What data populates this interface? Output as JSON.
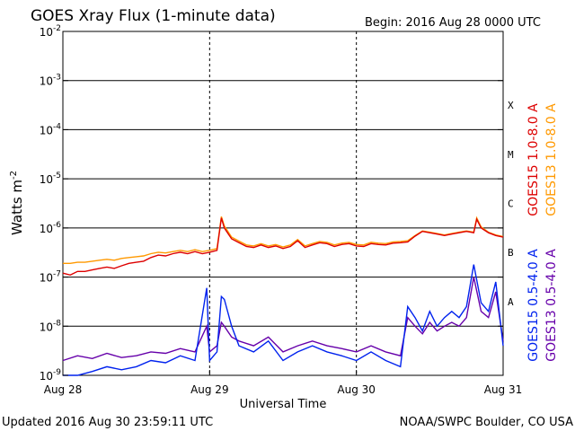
{
  "chart_data": {
    "type": "line",
    "title": "GOES Xray Flux (1-minute data)",
    "begin_label": "Begin:  2016 Aug 28 0000 UTC",
    "xlabel": "Universal Time",
    "ylabel": "Watts m",
    "ylabel_exp": "-2",
    "y_scale": "log",
    "ylim": [
      1e-09,
      0.01
    ],
    "y_ticks": [
      {
        "base": "10",
        "exp": "-9",
        "value": 1e-09
      },
      {
        "base": "10",
        "exp": "-8",
        "value": 1e-08
      },
      {
        "base": "10",
        "exp": "-7",
        "value": 1e-07
      },
      {
        "base": "10",
        "exp": "-6",
        "value": 1e-06
      },
      {
        "base": "10",
        "exp": "-5",
        "value": 1e-05
      },
      {
        "base": "10",
        "exp": "-4",
        "value": 0.0001
      },
      {
        "base": "10",
        "exp": "-3",
        "value": 0.001
      },
      {
        "base": "10",
        "exp": "-2",
        "value": 0.01
      }
    ],
    "x_ticks": [
      "Aug 28",
      "Aug 29",
      "Aug 30",
      "Aug 31"
    ],
    "xlim_days": [
      0,
      3
    ],
    "flare_classes": [
      "A",
      "B",
      "C",
      "M",
      "X"
    ],
    "grid": true,
    "legend_placement": "right-vertical",
    "series": [
      {
        "name": "GOES15 1.0-8.0 A",
        "color": "#dd0000",
        "x_days": [
          0.0,
          0.05,
          0.1,
          0.15,
          0.2,
          0.25,
          0.3,
          0.35,
          0.4,
          0.45,
          0.5,
          0.55,
          0.6,
          0.65,
          0.7,
          0.75,
          0.8,
          0.85,
          0.9,
          0.95,
          1.0,
          1.05,
          1.08,
          1.1,
          1.15,
          1.2,
          1.25,
          1.3,
          1.35,
          1.4,
          1.45,
          1.5,
          1.55,
          1.6,
          1.65,
          1.7,
          1.75,
          1.8,
          1.85,
          1.9,
          1.95,
          2.0,
          2.05,
          2.1,
          2.15,
          2.2,
          2.25,
          2.3,
          2.35,
          2.4,
          2.45,
          2.5,
          2.55,
          2.6,
          2.65,
          2.7,
          2.75,
          2.8,
          2.82,
          2.85,
          2.9,
          2.95,
          3.0
        ],
        "values": [
          1.2e-07,
          1.1e-07,
          1.3e-07,
          1.3e-07,
          1.4e-07,
          1.5e-07,
          1.6e-07,
          1.5e-07,
          1.7e-07,
          1.9e-07,
          2e-07,
          2.1e-07,
          2.5e-07,
          2.8e-07,
          2.7e-07,
          3e-07,
          3.2e-07,
          3e-07,
          3.3e-07,
          3e-07,
          3.2e-07,
          3.5e-07,
          1.6e-06,
          1e-06,
          6e-07,
          5e-07,
          4.2e-07,
          4e-07,
          4.5e-07,
          4e-07,
          4.3e-07,
          3.8e-07,
          4.2e-07,
          5.5e-07,
          4e-07,
          4.5e-07,
          5e-07,
          4.8e-07,
          4.2e-07,
          4.6e-07,
          4.8e-07,
          4.3e-07,
          4.2e-07,
          4.8e-07,
          4.6e-07,
          4.5e-07,
          4.9e-07,
          5e-07,
          5.2e-07,
          6.8e-07,
          8.5e-07,
          8e-07,
          7.5e-07,
          7e-07,
          7.5e-07,
          8e-07,
          8.5e-07,
          8e-07,
          1.5e-06,
          1e-06,
          8e-07,
          7e-07,
          6.5e-07
        ]
      },
      {
        "name": "GOES13 1.0-8.0 A",
        "color": "#ff9900",
        "x_days": [
          0.0,
          0.05,
          0.1,
          0.15,
          0.2,
          0.25,
          0.3,
          0.35,
          0.4,
          0.45,
          0.5,
          0.55,
          0.6,
          0.65,
          0.7,
          0.75,
          0.8,
          0.85,
          0.9,
          0.95,
          1.0,
          1.05,
          1.08,
          1.1,
          1.15,
          1.2,
          1.25,
          1.3,
          1.35,
          1.4,
          1.45,
          1.5,
          1.55,
          1.6,
          1.65,
          1.7,
          1.75,
          1.8,
          1.85,
          1.9,
          1.95,
          2.0,
          2.05,
          2.1,
          2.15,
          2.2,
          2.25,
          2.3,
          2.35,
          2.4,
          2.45,
          2.5,
          2.55,
          2.6,
          2.65,
          2.7,
          2.75,
          2.8,
          2.82,
          2.85,
          2.9,
          2.95,
          3.0
        ],
        "values": [
          1.9e-07,
          1.9e-07,
          2e-07,
          2e-07,
          2.1e-07,
          2.2e-07,
          2.3e-07,
          2.2e-07,
          2.4e-07,
          2.5e-07,
          2.6e-07,
          2.7e-07,
          3e-07,
          3.2e-07,
          3.1e-07,
          3.3e-07,
          3.5e-07,
          3.3e-07,
          3.6e-07,
          3.3e-07,
          3.5e-07,
          3.8e-07,
          1.7e-06,
          1.1e-06,
          6.5e-07,
          5.4e-07,
          4.5e-07,
          4.3e-07,
          4.8e-07,
          4.3e-07,
          4.6e-07,
          4.1e-07,
          4.5e-07,
          5.8e-07,
          4.3e-07,
          4.8e-07,
          5.3e-07,
          5.1e-07,
          4.5e-07,
          4.9e-07,
          5.1e-07,
          4.6e-07,
          4.5e-07,
          5.1e-07,
          4.9e-07,
          4.8e-07,
          5.2e-07,
          5.3e-07,
          5.5e-07,
          7e-07,
          8.7e-07,
          8.2e-07,
          7.7e-07,
          7.2e-07,
          7.7e-07,
          8.2e-07,
          8.7e-07,
          8.2e-07,
          1.6e-06,
          1.05e-06,
          8.2e-07,
          7.2e-07,
          6.7e-07
        ]
      },
      {
        "name": "GOES15 0.5-4.0 A",
        "color": "#0022ee",
        "x_days": [
          0.0,
          0.1,
          0.2,
          0.3,
          0.4,
          0.5,
          0.6,
          0.7,
          0.8,
          0.9,
          0.98,
          1.0,
          1.05,
          1.08,
          1.1,
          1.15,
          1.2,
          1.3,
          1.4,
          1.5,
          1.6,
          1.7,
          1.8,
          1.9,
          2.0,
          2.1,
          2.2,
          2.3,
          2.35,
          2.4,
          2.45,
          2.5,
          2.55,
          2.6,
          2.65,
          2.7,
          2.75,
          2.8,
          2.85,
          2.9,
          2.95,
          3.0
        ],
        "values": [
          1e-09,
          1e-09,
          1.2e-09,
          1.5e-09,
          1.3e-09,
          1.5e-09,
          2e-09,
          1.8e-09,
          2.5e-09,
          2e-09,
          6e-08,
          2e-09,
          3e-09,
          4e-08,
          3.5e-08,
          1e-08,
          4e-09,
          3e-09,
          5e-09,
          2e-09,
          3e-09,
          4e-09,
          3e-09,
          2.5e-09,
          2e-09,
          3e-09,
          2e-09,
          1.5e-09,
          2.5e-08,
          1.5e-08,
          8e-09,
          2e-08,
          1e-08,
          1.5e-08,
          2e-08,
          1.5e-08,
          2.5e-08,
          1.8e-07,
          3e-08,
          2e-08,
          8e-08,
          4e-09
        ]
      },
      {
        "name": "GOES13 0.5-4.0 A",
        "color": "#6600aa",
        "x_days": [
          0.0,
          0.1,
          0.2,
          0.3,
          0.4,
          0.5,
          0.6,
          0.7,
          0.8,
          0.9,
          0.98,
          1.0,
          1.05,
          1.08,
          1.1,
          1.15,
          1.2,
          1.3,
          1.4,
          1.5,
          1.6,
          1.7,
          1.8,
          1.9,
          2.0,
          2.1,
          2.2,
          2.3,
          2.35,
          2.4,
          2.45,
          2.5,
          2.55,
          2.6,
          2.65,
          2.7,
          2.75,
          2.8,
          2.85,
          2.9,
          2.95,
          3.0
        ],
        "values": [
          2e-09,
          2.5e-09,
          2.2e-09,
          2.8e-09,
          2.3e-09,
          2.5e-09,
          3e-09,
          2.8e-09,
          3.5e-09,
          3e-09,
          1e-08,
          3e-09,
          4e-09,
          1.2e-08,
          1e-08,
          6e-09,
          5e-09,
          4e-09,
          6e-09,
          3e-09,
          4e-09,
          5e-09,
          4e-09,
          3.5e-09,
          3e-09,
          4e-09,
          3e-09,
          2.5e-09,
          1.5e-08,
          1e-08,
          7e-09,
          1.2e-08,
          8e-09,
          1e-08,
          1.2e-08,
          1e-08,
          1.5e-08,
          1e-07,
          2e-08,
          1.5e-08,
          5e-08,
          5e-09
        ]
      }
    ]
  },
  "footer": {
    "updated": "Updated 2016 Aug 30 23:59:11 UTC",
    "credit": "NOAA/SWPC Boulder, CO USA"
  }
}
